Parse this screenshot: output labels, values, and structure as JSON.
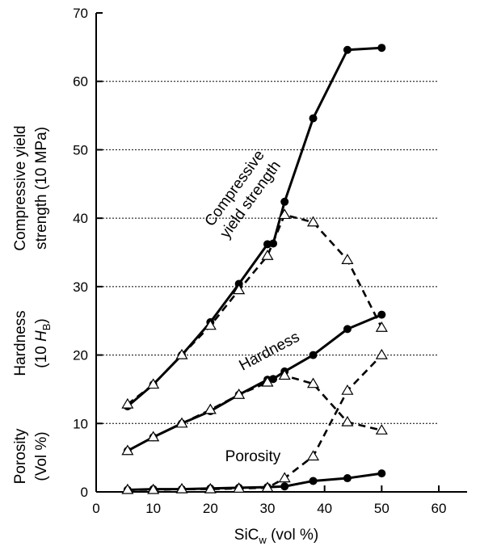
{
  "chart_data": {
    "type": "line",
    "xlabel": {
      "text": "SiC",
      "sub": "w",
      "rest": " (vol %)"
    },
    "xlim": [
      0,
      60
    ],
    "ylim": [
      0,
      70
    ],
    "x_ticks": [
      "0",
      "10",
      "20",
      "30",
      "40",
      "50",
      "60"
    ],
    "y_ticks": [
      "0",
      "10",
      "20",
      "30",
      "40",
      "50",
      "60",
      "70"
    ],
    "grid": "horizontal dotted lines at 60, 50, 40, 30, 20, 10",
    "ylabels": {
      "strength": [
        "Compressive yield",
        "strength (10 MPa)"
      ],
      "hardness_line1": "Hardness",
      "hardness_line2_pre": "(10 ",
      "hardness_line2_var": "H",
      "hardness_line2_sub": "B",
      "hardness_line2_post": ")",
      "porosity": [
        "Porosity",
        "(Vol %)"
      ]
    },
    "annotations": {
      "strength": [
        "Compressive",
        "yield strength"
      ],
      "hardness": "Hardness",
      "porosity": "Porosity"
    },
    "series": [
      {
        "group": "strength",
        "marker": "filled-circle",
        "style": "solid",
        "x": [
          5.5,
          10,
          15,
          20,
          25,
          30,
          31,
          33,
          38,
          44,
          50
        ],
        "y": [
          12.5,
          15.7,
          20,
          24.8,
          30.4,
          36.2,
          36.3,
          42.4,
          54.6,
          64.6,
          64.9
        ]
      },
      {
        "group": "strength",
        "marker": "open-triangle",
        "style": "dashed",
        "x": [
          5.5,
          10,
          15,
          20,
          25,
          30,
          33,
          38,
          44,
          50
        ],
        "y": [
          12.8,
          15.7,
          20,
          24.3,
          29.5,
          34.5,
          40.5,
          39.4,
          33.9,
          24.0
        ]
      },
      {
        "group": "hardness",
        "marker": "filled-circle",
        "style": "solid",
        "x": [
          5.5,
          10,
          15,
          20,
          25,
          30,
          31,
          33,
          38,
          44,
          50
        ],
        "y": [
          6.0,
          8.0,
          10.0,
          11.8,
          14.2,
          16.4,
          16.5,
          17.6,
          20.0,
          23.8,
          25.9
        ]
      },
      {
        "group": "hardness",
        "marker": "open-triangle",
        "style": "dashed",
        "x": [
          5.5,
          10,
          15,
          20,
          25,
          30,
          33,
          38,
          44,
          50
        ],
        "y": [
          6.0,
          8.0,
          10.0,
          12.0,
          14.2,
          16.0,
          17.0,
          15.8,
          10.2,
          9.0
        ]
      },
      {
        "group": "porosity",
        "marker": "filled-circle",
        "style": "solid",
        "x": [
          5.5,
          10,
          15,
          20,
          25,
          30,
          33,
          38,
          44,
          50
        ],
        "y": [
          0.3,
          0.4,
          0.4,
          0.5,
          0.6,
          0.7,
          0.8,
          1.6,
          2.0,
          2.7
        ]
      },
      {
        "group": "porosity",
        "marker": "open-triangle",
        "style": "dashed",
        "x": [
          5.5,
          10,
          15,
          20,
          25,
          30,
          33,
          38,
          44,
          50
        ],
        "y": [
          0.3,
          0.3,
          0.4,
          0.4,
          0.5,
          0.6,
          2.0,
          5.2,
          14.8,
          20.0
        ]
      }
    ]
  }
}
